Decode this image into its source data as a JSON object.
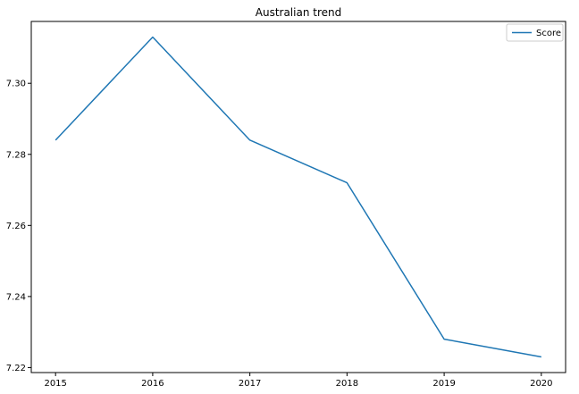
{
  "chart_data": {
    "type": "line",
    "title": "Australian trend",
    "xlabel": "",
    "ylabel": "",
    "x": [
      2015,
      2016,
      2017,
      2018,
      2019,
      2020
    ],
    "series": [
      {
        "name": "Score",
        "values": [
          7.284,
          7.313,
          7.284,
          7.272,
          7.228,
          7.223
        ],
        "color": "#1f77b4"
      }
    ],
    "xlim": [
      2014.75,
      2020.25
    ],
    "ylim": [
      7.2186,
      7.3174
    ],
    "x_ticks": [
      2015,
      2016,
      2017,
      2018,
      2019,
      2020
    ],
    "x_tick_labels": [
      "2015",
      "2016",
      "2017",
      "2018",
      "2019",
      "2020"
    ],
    "y_ticks": [
      7.22,
      7.24,
      7.26,
      7.28,
      7.3
    ],
    "y_tick_labels": [
      "7.22",
      "7.24",
      "7.26",
      "7.28",
      "7.30"
    ],
    "grid": false,
    "legend_position": "top-right"
  }
}
